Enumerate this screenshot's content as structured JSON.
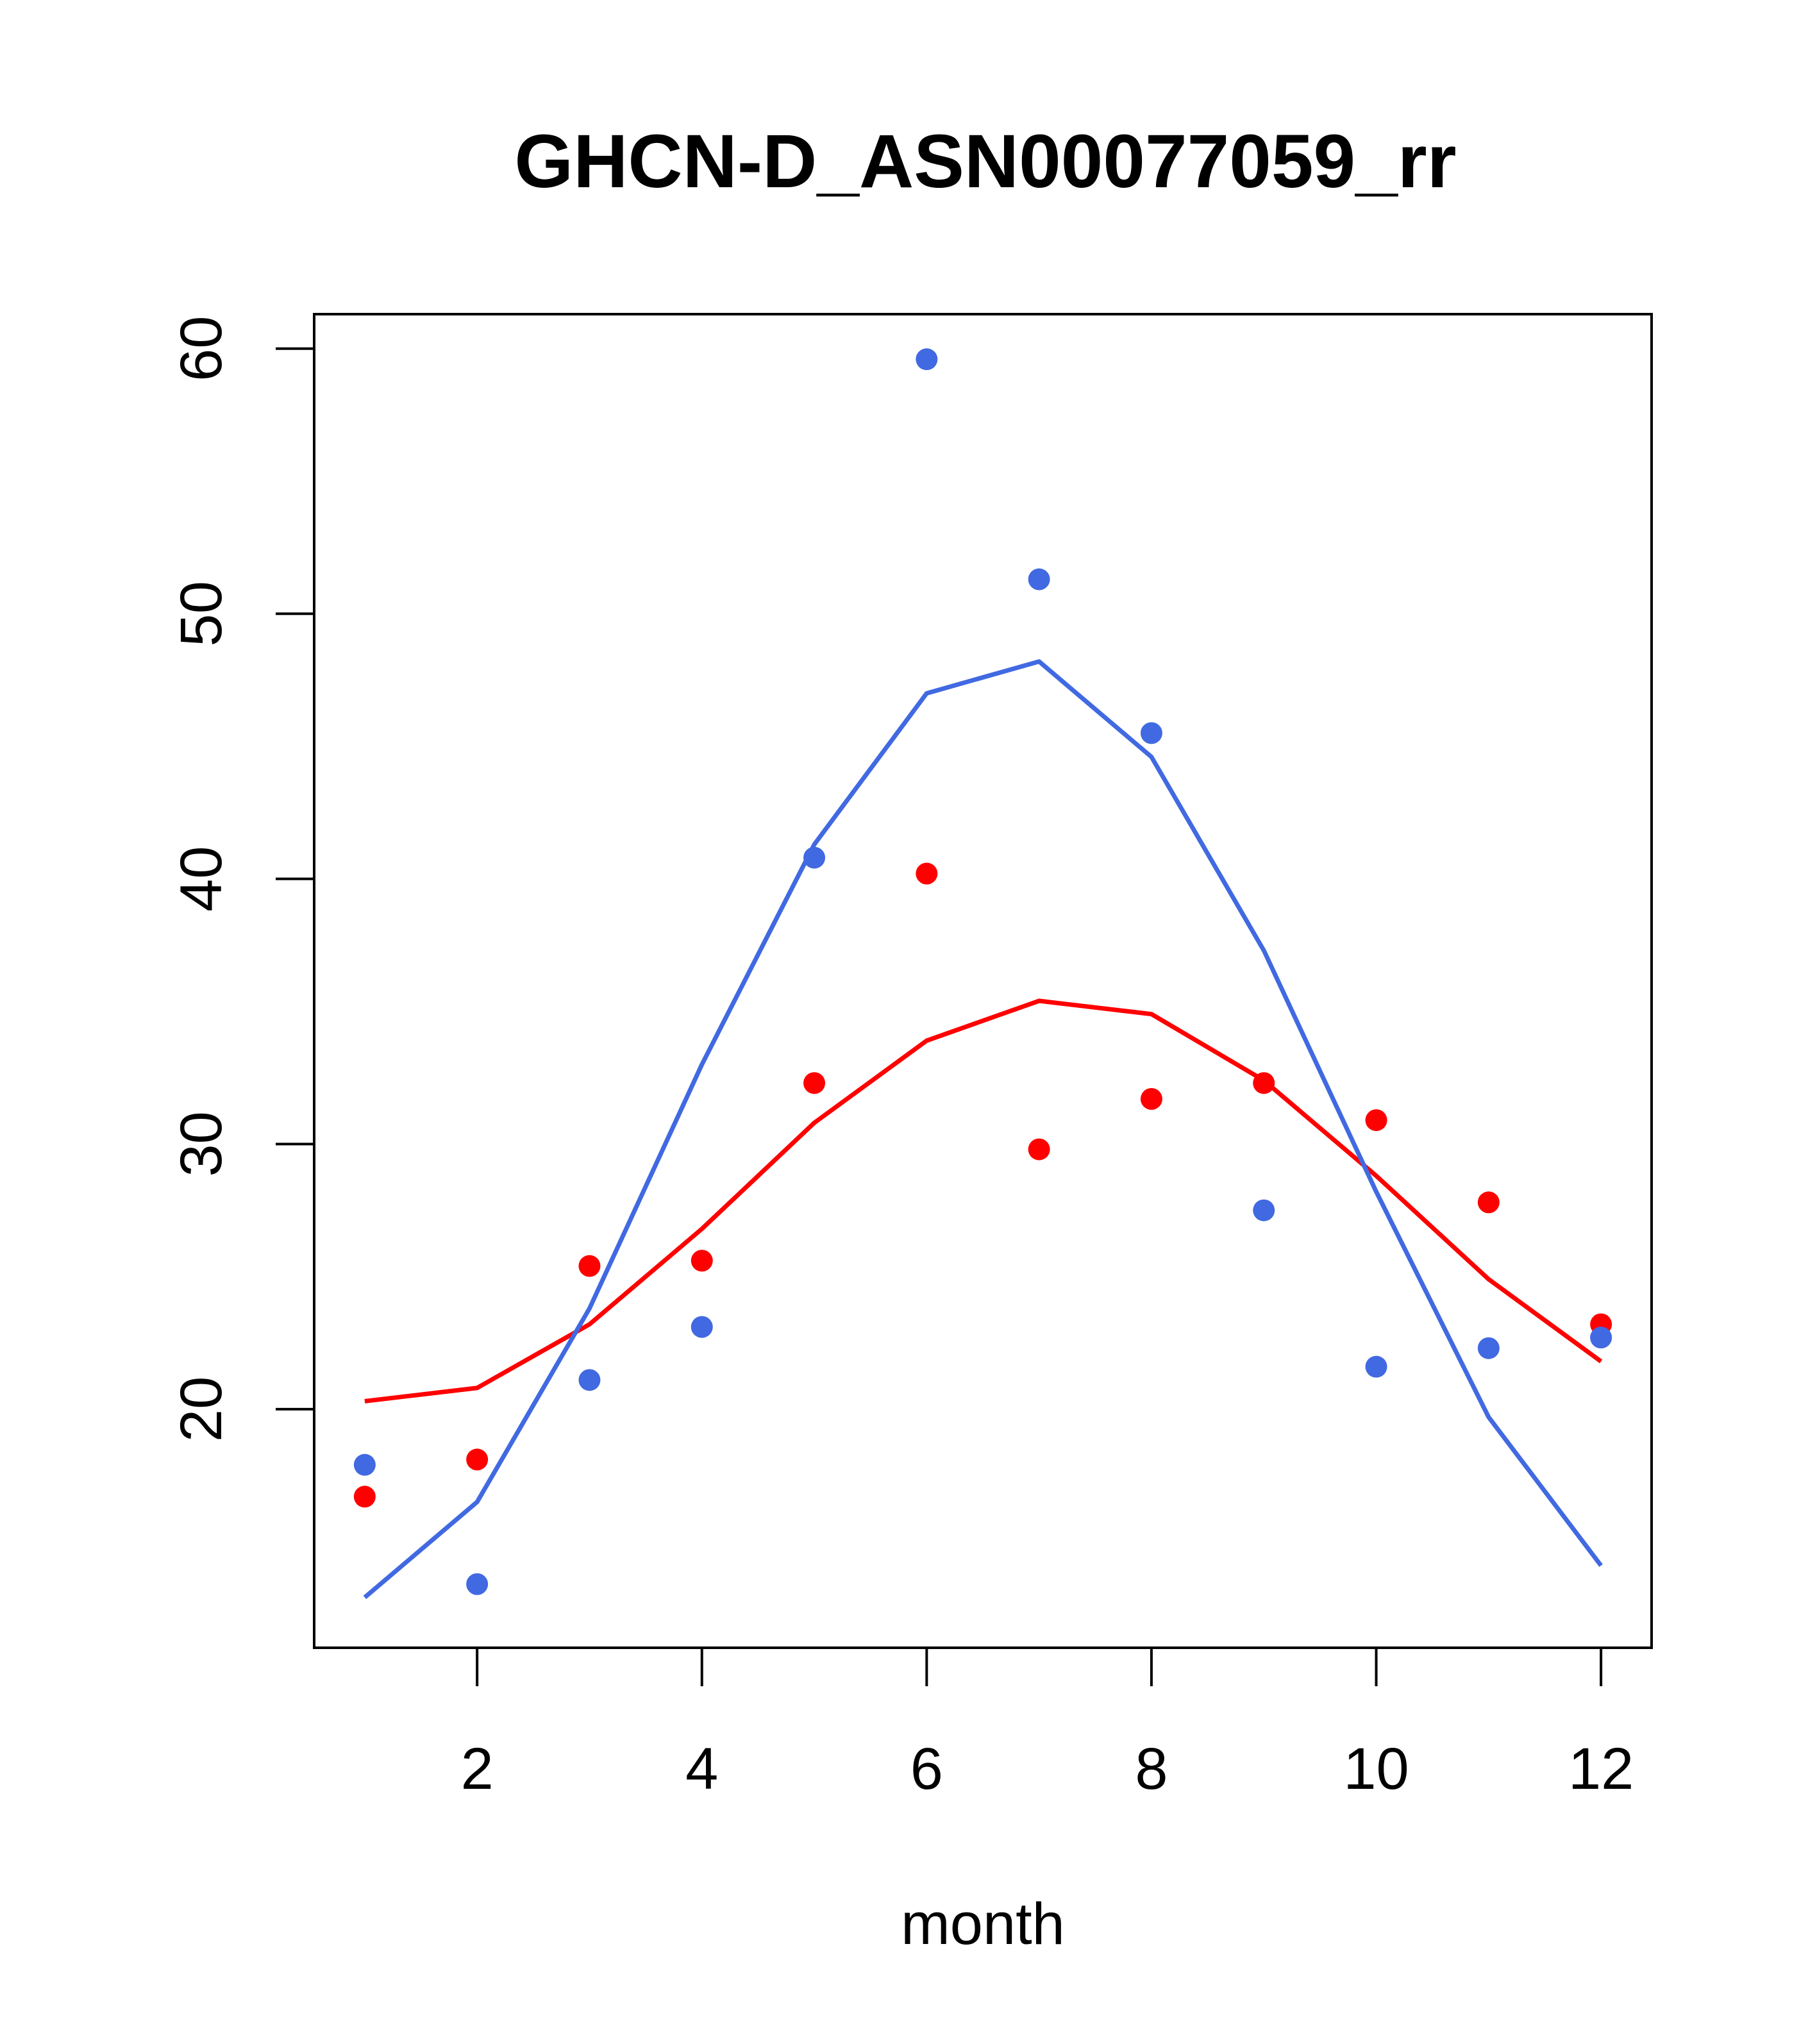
{
  "chart_data": {
    "type": "scatter",
    "title": "GHCN-D_ASN00077059_rr",
    "xlabel": "month",
    "ylabel": "",
    "xlim": [
      0.55,
      12.45
    ],
    "ylim": [
      11,
      61.3
    ],
    "x_ticks": [
      2,
      4,
      6,
      8,
      10,
      12
    ],
    "y_ticks": [
      20,
      30,
      40,
      50,
      60
    ],
    "grid": false,
    "legend": "none",
    "x": [
      1,
      2,
      3,
      4,
      5,
      6,
      7,
      8,
      9,
      10,
      11,
      12
    ],
    "series": [
      {
        "color": "#ff0000",
        "points": [
          16.7,
          18.1,
          25.4,
          25.6,
          32.3,
          40.2,
          29.8,
          31.7,
          32.3,
          30.9,
          27.8,
          23.2
        ],
        "line": [
          20.3,
          20.8,
          23.2,
          26.8,
          30.8,
          33.9,
          35.4,
          34.9,
          32.4,
          28.8,
          24.9,
          21.8
        ]
      },
      {
        "color": "#4169e1",
        "points": [
          17.9,
          13.4,
          21.1,
          23.1,
          40.8,
          59.6,
          51.3,
          45.5,
          27.5,
          21.6,
          22.3,
          22.7
        ],
        "line": [
          12.9,
          16.5,
          23.8,
          33.0,
          41.3,
          47.0,
          48.2,
          44.6,
          37.3,
          28.2,
          19.7,
          14.1
        ]
      }
    ]
  }
}
